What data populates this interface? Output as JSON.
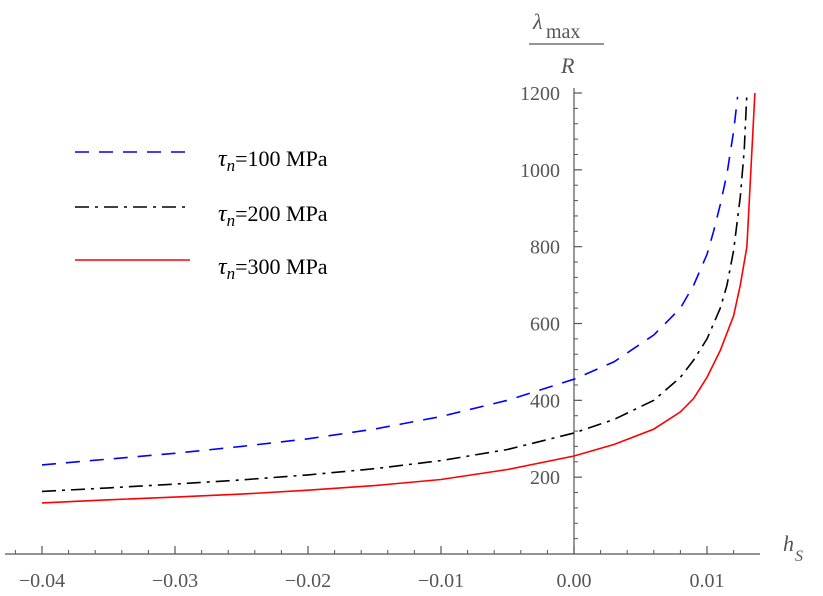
{
  "chart_data": {
    "type": "line",
    "title": "",
    "xlabel": {
      "main": "h",
      "sub": "S"
    },
    "ylabel": {
      "numerator_main": "λ",
      "numerator_sub": "max",
      "denominator": "R"
    },
    "xlim": [
      -0.042,
      0.0135
    ],
    "ylim": [
      0,
      1200
    ],
    "x_ticks": [
      -0.04,
      -0.03,
      -0.02,
      -0.01,
      0.0,
      0.01
    ],
    "x_tick_labels": [
      "−0.04",
      "−0.03",
      "−0.02",
      "−0.01",
      "0.00",
      "0.01"
    ],
    "y_ticks": [
      200,
      400,
      600,
      800,
      1000,
      1200
    ],
    "y_tick_labels": [
      "200",
      "400",
      "600",
      "800",
      "1000",
      "1200"
    ],
    "legend_position": "top-left",
    "grid": false,
    "series": [
      {
        "name": "τn=100 MPa",
        "tau_symbol": "τ",
        "tau_sub": "n",
        "label_rest": "=100 MPa",
        "color": "#0000ff",
        "dash": "dashed",
        "x": [
          -0.04,
          -0.035,
          -0.03,
          -0.025,
          -0.02,
          -0.015,
          -0.01,
          -0.005,
          0.0,
          0.003,
          0.006,
          0.008,
          0.009,
          0.01,
          0.0105,
          0.011,
          0.0115,
          0.012,
          0.0123
        ],
        "y": [
          232,
          247,
          262,
          280,
          300,
          325,
          358,
          400,
          455,
          500,
          570,
          640,
          700,
          780,
          840,
          910,
          990,
          1100,
          1190
        ]
      },
      {
        "name": "τn=200 MPa",
        "tau_symbol": "τ",
        "tau_sub": "n",
        "label_rest": "=200 MPa",
        "color": "#000000",
        "dash": "dashdot",
        "x": [
          -0.04,
          -0.035,
          -0.03,
          -0.025,
          -0.02,
          -0.015,
          -0.01,
          -0.005,
          0.0,
          0.003,
          0.006,
          0.008,
          0.009,
          0.01,
          0.011,
          0.0115,
          0.012,
          0.0125,
          0.0128,
          0.013
        ],
        "y": [
          163,
          172,
          182,
          193,
          206,
          222,
          243,
          272,
          315,
          350,
          400,
          460,
          505,
          560,
          640,
          700,
          790,
          930,
          1050,
          1200
        ]
      },
      {
        "name": "τn=300 MPa",
        "tau_symbol": "τ",
        "tau_sub": "n",
        "label_rest": "=300 MPa",
        "color": "#ff0000",
        "dash": "solid",
        "x": [
          -0.04,
          -0.035,
          -0.03,
          -0.025,
          -0.02,
          -0.015,
          -0.01,
          -0.005,
          0.0,
          0.003,
          0.006,
          0.008,
          0.009,
          0.01,
          0.011,
          0.012,
          0.0125,
          0.013,
          0.0133,
          0.0136
        ],
        "y": [
          133,
          141,
          148,
          156,
          166,
          178,
          194,
          220,
          255,
          285,
          325,
          370,
          405,
          460,
          530,
          620,
          700,
          800,
          1000,
          1200
        ]
      }
    ]
  }
}
